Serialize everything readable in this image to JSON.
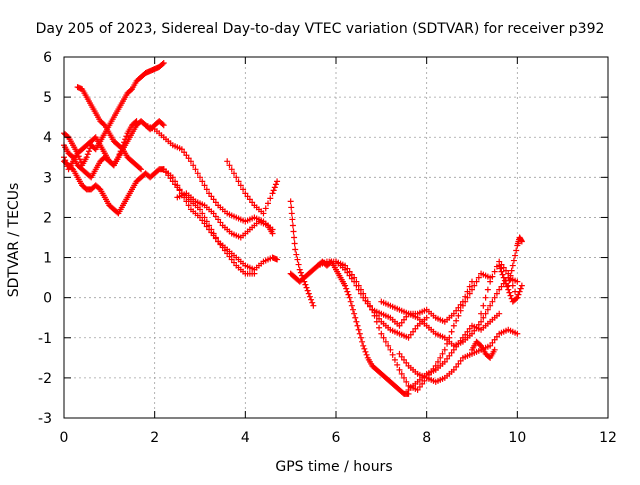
{
  "chart_data": {
    "type": "scatter",
    "title": "Day 205 of 2023, Sidereal Day-to-day VTEC variation (SDTVAR) for receiver p392",
    "xlabel": "GPS time / hours",
    "ylabel": "SDTVAR / TECUs",
    "xlim": [
      0,
      12
    ],
    "ylim": [
      -3,
      6
    ],
    "xticks": [
      0,
      2,
      4,
      6,
      8,
      10,
      12
    ],
    "yticks": [
      -3,
      -2,
      -1,
      0,
      1,
      2,
      3,
      4,
      5,
      6
    ],
    "grid": true,
    "marker": "+",
    "color": "#ff0000",
    "series": [
      {
        "x": [
          0.0,
          0.1,
          0.2,
          0.3,
          0.4,
          0.5,
          0.6,
          0.7,
          0.8,
          0.9,
          1.0,
          1.1,
          1.2,
          1.3,
          1.4,
          1.5,
          1.6,
          1.7,
          1.8,
          1.9,
          2.0,
          2.1,
          2.2
        ],
        "y": [
          3.5,
          3.2,
          3.4,
          3.6,
          3.3,
          3.5,
          3.8,
          3.7,
          3.9,
          4.1,
          4.3,
          4.5,
          4.7,
          4.9,
          5.1,
          5.2,
          5.4,
          5.5,
          5.6,
          5.65,
          5.7,
          5.75,
          5.85
        ]
      },
      {
        "x": [
          0.0,
          0.1,
          0.2,
          0.3,
          0.4,
          0.5,
          0.6,
          0.7,
          0.8,
          0.9,
          1.0,
          1.1,
          1.2,
          1.3,
          1.4,
          1.5,
          1.6,
          1.7,
          1.8,
          1.9,
          2.0,
          2.1,
          2.2
        ],
        "y": [
          3.4,
          3.3,
          3.2,
          3.0,
          2.8,
          2.7,
          2.7,
          2.8,
          2.7,
          2.5,
          2.3,
          2.2,
          2.1,
          2.3,
          2.5,
          2.7,
          2.9,
          3.0,
          3.1,
          3.0,
          3.1,
          3.2,
          3.2
        ]
      },
      {
        "x": [
          0.0,
          0.1,
          0.2,
          0.3,
          0.4,
          0.5,
          0.6,
          0.7,
          0.8,
          0.9,
          1.0,
          1.1,
          1.2,
          1.3,
          1.4,
          1.5,
          1.6,
          1.7,
          1.8,
          1.9,
          2.0,
          2.1,
          2.2
        ],
        "y": [
          3.8,
          3.6,
          3.5,
          3.3,
          3.2,
          3.1,
          3.0,
          3.2,
          3.4,
          3.5,
          3.4,
          3.3,
          3.5,
          3.7,
          3.9,
          4.1,
          4.3,
          4.4,
          4.3,
          4.2,
          4.3,
          4.4,
          4.3
        ]
      },
      {
        "x": [
          0.0,
          0.1,
          0.2,
          0.3,
          0.4,
          0.5,
          0.6,
          0.7,
          0.8,
          0.9,
          1.0,
          1.1,
          1.2,
          1.3,
          1.4,
          1.5,
          1.6
        ],
        "y": [
          4.1,
          4.0,
          3.8,
          3.6,
          3.7,
          3.8,
          3.9,
          4.0,
          3.8,
          3.6,
          3.4,
          3.3,
          3.5,
          3.8,
          4.1,
          4.3,
          4.4
        ]
      },
      {
        "x": [
          0.3,
          0.4,
          0.5,
          0.6,
          0.7,
          0.8,
          0.9,
          1.0,
          1.1,
          1.2,
          1.3,
          1.4,
          1.5,
          1.6,
          1.7
        ],
        "y": [
          5.25,
          5.2,
          5.0,
          4.8,
          4.6,
          4.4,
          4.3,
          4.1,
          3.9,
          3.8,
          3.7,
          3.5,
          3.4,
          3.3,
          3.2
        ]
      },
      {
        "x": [
          2.2,
          2.4,
          2.6,
          2.8,
          3.0,
          3.2,
          3.4,
          3.6,
          3.8,
          4.0,
          4.2,
          4.4,
          4.6,
          4.7
        ],
        "y": [
          3.2,
          3.0,
          2.6,
          2.2,
          2.0,
          1.7,
          1.4,
          1.2,
          1.0,
          0.8,
          0.7,
          0.9,
          1.0,
          0.95
        ]
      },
      {
        "x": [
          2.2,
          2.4,
          2.6,
          2.8,
          3.0,
          3.2,
          3.4,
          3.6,
          3.8,
          4.0,
          4.2
        ],
        "y": [
          3.2,
          2.9,
          2.6,
          2.4,
          2.2,
          1.8,
          1.4,
          1.1,
          0.8,
          0.6,
          0.6
        ]
      },
      {
        "x": [
          1.8,
          2.0,
          2.2,
          2.4,
          2.6,
          2.8,
          3.0,
          3.2,
          3.4,
          3.6,
          3.8,
          4.0,
          4.2,
          4.4,
          4.6
        ],
        "y": [
          4.3,
          4.2,
          4.0,
          3.8,
          3.7,
          3.4,
          3.0,
          2.6,
          2.3,
          2.1,
          2.0,
          1.9,
          2.0,
          1.9,
          1.7
        ]
      },
      {
        "x": [
          2.5,
          2.7,
          2.9,
          3.1,
          3.3,
          3.5,
          3.7,
          3.9,
          4.1,
          4.3,
          4.5,
          4.6
        ],
        "y": [
          2.5,
          2.6,
          2.4,
          2.3,
          2.1,
          1.8,
          1.6,
          1.5,
          1.7,
          1.9,
          1.8,
          1.6
        ]
      },
      {
        "x": [
          3.6,
          3.8,
          4.0,
          4.2,
          4.4,
          4.6,
          4.7
        ],
        "y": [
          3.4,
          3.0,
          2.6,
          2.3,
          2.1,
          2.6,
          2.9
        ]
      },
      {
        "x": [
          5.0,
          5.1,
          5.2,
          5.3,
          5.4,
          5.5,
          5.6,
          5.7,
          5.8,
          5.9,
          6.0,
          6.1,
          6.2,
          6.3,
          6.4,
          6.5,
          6.6,
          6.7,
          6.8,
          6.9,
          7.0,
          7.1,
          7.2,
          7.3,
          7.4,
          7.5,
          7.6
        ],
        "y": [
          0.6,
          0.5,
          0.4,
          0.5,
          0.6,
          0.7,
          0.8,
          0.9,
          0.8,
          0.9,
          0.7,
          0.5,
          0.3,
          0.0,
          -0.4,
          -0.8,
          -1.2,
          -1.5,
          -1.7,
          -1.8,
          -1.9,
          -2.0,
          -2.1,
          -2.2,
          -2.3,
          -2.4,
          -2.4
        ]
      },
      {
        "x": [
          5.6,
          5.8,
          6.0,
          6.2,
          6.4,
          6.6,
          6.8,
          7.0,
          7.2,
          7.4,
          7.6,
          7.8,
          8.0
        ],
        "y": [
          0.8,
          0.9,
          0.9,
          0.8,
          0.5,
          0.1,
          -0.3,
          -0.6,
          -0.8,
          -0.9,
          -1.0,
          -0.7,
          -0.5
        ]
      },
      {
        "x": [
          6.0,
          6.2,
          6.4,
          6.6,
          6.8,
          7.0,
          7.2,
          7.4,
          7.6,
          7.8,
          8.0,
          8.2,
          8.4,
          8.6,
          8.8,
          9.0
        ],
        "y": [
          0.9,
          0.7,
          0.4,
          0.0,
          -0.3,
          -0.4,
          -0.5,
          -0.7,
          -0.4,
          -0.4,
          -0.3,
          -0.5,
          -0.6,
          -0.4,
          -0.1,
          0.4
        ]
      },
      {
        "x": [
          6.8,
          7.0,
          7.2,
          7.4,
          7.6,
          7.8,
          8.0,
          8.2,
          8.4,
          8.6,
          8.8,
          9.0,
          9.2,
          9.4
        ],
        "y": [
          -0.3,
          -0.9,
          -1.3,
          -1.8,
          -2.2,
          -2.3,
          -2.0,
          -1.7,
          -1.3,
          -0.7,
          -0.2,
          0.2,
          0.6,
          0.5
        ]
      },
      {
        "x": [
          7.6,
          7.8,
          8.0,
          8.2,
          8.4,
          8.6,
          8.8,
          9.0,
          9.2,
          9.4,
          9.6
        ],
        "y": [
          -2.3,
          -2.1,
          -1.9,
          -1.8,
          -1.6,
          -1.3,
          -1.0,
          -0.7,
          -0.8,
          -0.6,
          -0.4
        ]
      },
      {
        "x": [
          7.4,
          7.6,
          7.8,
          8.0,
          8.2,
          8.4,
          8.6,
          8.8,
          9.0,
          9.2,
          9.4,
          9.6,
          9.8,
          10.0
        ],
        "y": [
          -1.4,
          -1.7,
          -1.9,
          -2.0,
          -2.1,
          -2.0,
          -1.8,
          -1.5,
          -1.4,
          -1.3,
          -1.2,
          -0.9,
          -0.8,
          -0.9
        ]
      },
      {
        "x": [
          9.8,
          9.9,
          10.0,
          10.05,
          10.1
        ],
        "y": [
          0.3,
          0.8,
          1.3,
          1.5,
          1.4
        ]
      },
      {
        "x": [
          9.6,
          9.7,
          9.8,
          9.9,
          10.0,
          10.1
        ],
        "y": [
          0.8,
          0.5,
          0.2,
          -0.1,
          0.0,
          0.3
        ]
      },
      {
        "x": [
          5.0,
          5.05,
          5.1,
          5.2,
          5.3,
          5.4,
          5.5
        ],
        "y": [
          2.4,
          1.8,
          1.2,
          0.7,
          0.4,
          0.1,
          -0.2
        ]
      },
      {
        "x": [
          7.0,
          7.2,
          7.4,
          7.6,
          7.8,
          8.0,
          8.2,
          8.4,
          8.6,
          8.8,
          9.0,
          9.2,
          9.4,
          9.6,
          9.8,
          10.0
        ],
        "y": [
          -0.1,
          -0.2,
          -0.3,
          -0.4,
          -0.5,
          -0.7,
          -0.9,
          -1.0,
          -1.2,
          -1.1,
          -0.9,
          -0.6,
          -0.2,
          0.2,
          0.5,
          0.4
        ]
      },
      {
        "x": [
          9.0,
          9.1,
          9.2,
          9.3,
          9.4,
          9.5
        ],
        "y": [
          -1.3,
          -1.1,
          -1.2,
          -1.4,
          -1.5,
          -1.3
        ]
      },
      {
        "x": [
          9.2,
          9.4,
          9.6,
          9.8,
          10.0
        ],
        "y": [
          -0.4,
          0.4,
          0.9,
          0.6,
          0.0
        ]
      }
    ]
  }
}
